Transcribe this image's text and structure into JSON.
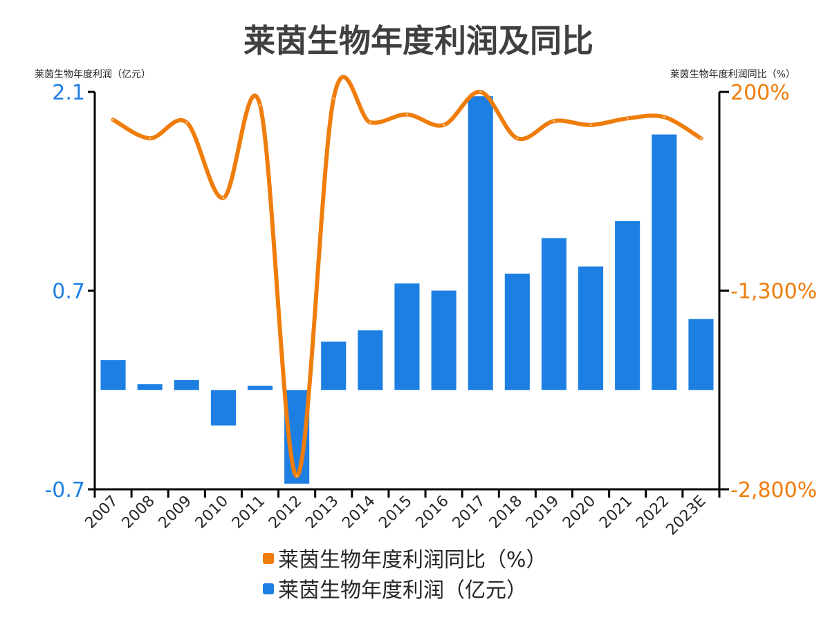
{
  "chart_data": {
    "type": "bar+line",
    "title": "莱茵生物年度利润及同比",
    "categories": [
      "2007",
      "2008",
      "2009",
      "2010",
      "2011",
      "2012",
      "2013",
      "2014",
      "2015",
      "2016",
      "2017",
      "2018",
      "2019",
      "2020",
      "2021",
      "2022",
      "2023E"
    ],
    "left_axis": {
      "label": "莱茵生物年度利润（亿元）",
      "ticks": [
        "2.1",
        "0.7",
        "-0.7"
      ],
      "tick_values": [
        2.1,
        0.7,
        -0.7
      ],
      "range": [
        -0.7,
        2.1
      ],
      "color": "#1e7fe3"
    },
    "right_axis": {
      "label": "莱茵生物年度利润同比（%）",
      "ticks": [
        "200%",
        "-1,300%",
        "-2,800%"
      ],
      "tick_values": [
        200,
        -1300,
        -2800
      ],
      "range": [
        -2800,
        200
      ],
      "color": "#ef7d0c"
    },
    "series": [
      {
        "name": "莱茵生物年度利润同比（%）",
        "type": "line",
        "axis": "right",
        "color": "#ef7d0c",
        "values": [
          -10,
          -150,
          -30,
          -600,
          100,
          -2700,
          150,
          -30,
          30,
          -50,
          200,
          -150,
          -20,
          -50,
          0,
          10,
          -150
        ]
      },
      {
        "name": "莱茵生物年度利润（亿元）",
        "type": "bar",
        "axis": "left",
        "color": "#1e7fe3",
        "values": [
          0.21,
          0.04,
          0.07,
          -0.25,
          0.03,
          -0.66,
          0.34,
          0.42,
          0.75,
          0.7,
          2.07,
          0.82,
          1.07,
          0.87,
          1.19,
          1.8,
          0.5
        ]
      }
    ],
    "legend_position": "bottom",
    "grid": false
  }
}
